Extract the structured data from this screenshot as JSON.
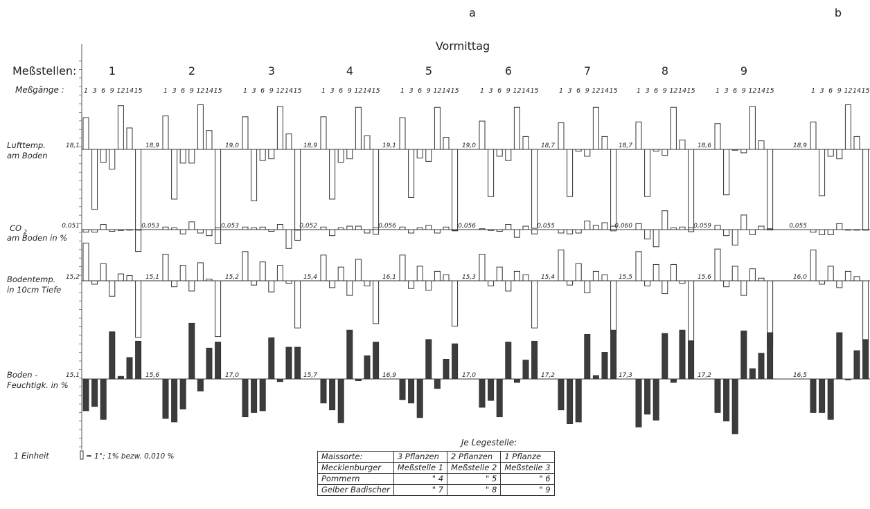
{
  "labels": {
    "panel_a": "a",
    "panel_b": "b",
    "period": "Vormittag",
    "messstellen": "Meßstellen:",
    "messgaenge": "Meßgänge :",
    "row_luft": [
      "Lufttemp.",
      "am Boden"
    ],
    "row_co2": [
      "CO",
      "am Boden in %"
    ],
    "row_co2_sub": "2",
    "row_boden": [
      "Bodentemp.",
      "in 10cm Tiefe"
    ],
    "row_feucht": [
      "Boden -",
      "Feuchtigk. in %"
    ],
    "einheit": "1 Einheit",
    "einheit_text": "= 1°; 1% bezw. 0,010 %",
    "je_legestelle": "Je Legestelle:"
  },
  "meas_runs": [
    "1",
    "3",
    "6",
    "9",
    "12",
    "14",
    "15"
  ],
  "stations": [
    "1",
    "2",
    "3",
    "4",
    "5",
    "6",
    "7",
    "8",
    "9",
    ""
  ],
  "table": {
    "header": [
      "Maissorte:",
      "3 Pflanzen",
      "2 Pflanzen",
      "1 Pflanze"
    ],
    "rows": [
      [
        "Mecklenburger",
        "Meßstelle 1",
        "Meßstelle 2",
        "Meßstelle 3"
      ],
      [
        "Pommern",
        "\"   4",
        "\"   5",
        "\"   6"
      ],
      [
        "Gelber Badischer",
        "\"   7",
        "\"   8",
        "\"   9"
      ]
    ]
  },
  "chart_data": {
    "type": "bar",
    "title": "Vormittag",
    "unit_note": "1 Einheit = 1°; 1% bezw. 0,010 %",
    "x": [
      "1",
      "3",
      "6",
      "9",
      "12",
      "14",
      "15"
    ],
    "stations": [
      "1",
      "2",
      "3",
      "4",
      "5",
      "6",
      "7",
      "8",
      "9",
      "b"
    ],
    "rows": [
      {
        "name": "Lufttemp. am Boden",
        "filled": false,
        "baselines": [
          "18,1",
          "18,9",
          "19,0",
          "18,9",
          "19,1",
          "19,0",
          "18,7",
          "18,7",
          "18,6",
          "18,9"
        ],
        "values": [
          [
            3.7,
            -7.0,
            -1.5,
            -2.3,
            5.1,
            2.5,
            -11.9
          ],
          [
            3.9,
            -5.8,
            -1.6,
            -1.6,
            5.2,
            2.2,
            -11.0
          ],
          [
            3.8,
            -6.0,
            -1.3,
            -1.1,
            5.0,
            1.8,
            -10.6
          ],
          [
            3.8,
            -5.8,
            -1.5,
            -1.1,
            4.9,
            1.6,
            -9.9
          ],
          [
            3.7,
            -5.6,
            -1.0,
            -1.4,
            4.9,
            1.4,
            -9.5
          ],
          [
            3.3,
            -5.5,
            -0.8,
            -1.3,
            4.9,
            1.5,
            -9.2
          ],
          [
            3.1,
            -5.5,
            -0.2,
            -0.8,
            4.9,
            1.5,
            -9.5
          ],
          [
            3.2,
            -5.5,
            -0.2,
            -0.7,
            4.9,
            1.1,
            -9.6
          ],
          [
            3.0,
            -5.3,
            -0.1,
            -0.4,
            5.0,
            1.0,
            -9.4
          ],
          [
            3.2,
            -5.4,
            -0.8,
            -1.1,
            5.2,
            1.5,
            -9.4
          ]
        ]
      },
      {
        "name": "CO2 am Boden in %",
        "filled": false,
        "baselines": [
          "0,051",
          "0,053",
          "0,053",
          "0,052",
          "0,056",
          "0,056",
          "0,055",
          "0,060",
          "0,059",
          "0,055"
        ],
        "values": [
          [
            -0.3,
            -0.3,
            0.6,
            -0.2,
            -0.1,
            0.0,
            0.0
          ],
          [
            0.3,
            0.2,
            -0.5,
            0.9,
            -0.4,
            -0.7,
            0.2
          ],
          [
            0.3,
            0.2,
            0.3,
            -0.2,
            0.6,
            -2.2,
            0.0
          ],
          [
            0.3,
            -0.7,
            0.2,
            0.4,
            0.4,
            -0.4,
            0.2
          ],
          [
            0.3,
            -0.4,
            0.2,
            0.5,
            -0.4,
            0.3,
            -0.1
          ],
          [
            0.1,
            -0.1,
            -0.2,
            0.6,
            -0.9,
            0.4,
            -0.5
          ],
          [
            -0.4,
            -0.5,
            -0.4,
            1.0,
            0.5,
            0.8,
            0.4
          ],
          [
            0.7,
            -1.1,
            -2.0,
            2.2,
            0.2,
            0.3,
            0.2
          ],
          [
            0.5,
            -0.7,
            -1.8,
            1.7,
            -0.6,
            0.4,
            0.1
          ],
          [
            -0.3,
            -0.6,
            -0.6,
            0.7,
            0.0,
            0.0,
            0.0
          ]
        ]
      },
      {
        "name": "Bodentemp. in 10cm Tiefe",
        "filled": false,
        "baselines": [
          "15,2",
          "15,1",
          "15,2",
          "15,4",
          "16,1",
          "15,3",
          "15,4",
          "15,5",
          "15,6",
          "16,0"
        ],
        "values": [
          [
            4.4,
            -0.4,
            2.0,
            -1.8,
            0.8,
            0.6,
            -6.6
          ],
          [
            3.1,
            -0.7,
            1.8,
            -1.2,
            2.1,
            0.2,
            -6.5
          ],
          [
            3.4,
            -0.5,
            2.2,
            -1.3,
            1.8,
            -0.3,
            -5.5
          ],
          [
            3.0,
            -0.8,
            1.6,
            -1.7,
            2.5,
            -0.6,
            -5.0
          ],
          [
            3.0,
            -0.9,
            1.7,
            -1.1,
            1.1,
            0.7,
            -5.3
          ],
          [
            3.1,
            -0.6,
            1.6,
            -1.2,
            1.1,
            0.7,
            -5.5
          ],
          [
            3.6,
            -0.5,
            2.0,
            -1.4,
            1.1,
            0.7,
            -6.0
          ],
          [
            3.4,
            -0.6,
            1.9,
            -1.5,
            1.9,
            -0.3,
            -7.0
          ],
          [
            3.7,
            -0.7,
            1.7,
            -1.7,
            1.4,
            0.3,
            -7.6
          ],
          [
            3.6,
            -0.4,
            1.7,
            -0.8,
            1.1,
            0.5,
            -7.4
          ]
        ]
      },
      {
        "name": "Boden - Feuchtigk. in %",
        "filled": true,
        "baselines": [
          "15,1",
          "15,6",
          "17,0",
          "15,7",
          "16,9",
          "17,0",
          "17,2",
          "17,3",
          "17,2",
          "16,5"
        ],
        "values": [
          [
            -3.7,
            -3.2,
            -4.7,
            5.5,
            0.3,
            2.5,
            4.4
          ],
          [
            -4.6,
            -5.0,
            -3.5,
            6.5,
            -1.4,
            3.6,
            4.3
          ],
          [
            -4.4,
            -3.9,
            -3.7,
            4.8,
            -0.3,
            3.7,
            3.7
          ],
          [
            -2.8,
            -3.6,
            -5.1,
            5.7,
            -0.2,
            2.7,
            4.3
          ],
          [
            -2.4,
            -2.8,
            -4.5,
            4.6,
            -1.1,
            2.3,
            4.1
          ],
          [
            -3.3,
            -2.5,
            -4.4,
            4.3,
            -0.4,
            2.2,
            4.4
          ],
          [
            -3.6,
            -5.2,
            -5.0,
            5.2,
            0.4,
            3.1,
            5.7
          ],
          [
            -5.6,
            -4.1,
            -4.8,
            5.3,
            -0.4,
            5.7,
            4.4
          ],
          [
            -3.9,
            -4.9,
            -6.4,
            5.6,
            1.2,
            3.0,
            5.4
          ],
          [
            -3.9,
            -3.9,
            -4.7,
            5.4,
            -0.1,
            3.3,
            4.6
          ]
        ]
      }
    ]
  }
}
